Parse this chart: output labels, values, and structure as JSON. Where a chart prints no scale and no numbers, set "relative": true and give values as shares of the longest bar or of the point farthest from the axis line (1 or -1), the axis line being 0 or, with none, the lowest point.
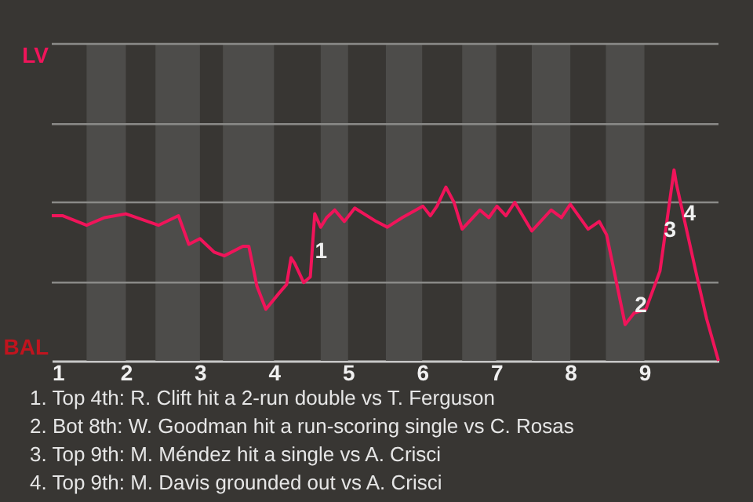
{
  "chart_data": {
    "type": "line",
    "relative": true,
    "x": [
      1,
      1.15,
      1.47,
      1.71,
      2,
      2.44,
      2.71,
      2.85,
      3,
      3.19,
      3.33,
      3.58,
      3.66,
      3.77,
      3.89,
      4.08,
      4.17,
      4.23,
      4.28,
      4.4,
      4.49,
      4.55,
      4.63,
      4.71,
      4.82,
      4.95,
      5.09,
      5.38,
      5.53,
      5.73,
      6.01,
      6.11,
      6.2,
      6.32,
      6.43,
      6.54,
      6.78,
      6.9,
      7.01,
      7.13,
      7.25,
      7.48,
      7.74,
      7.88,
      8,
      8.24,
      8.39,
      8.49,
      8.74,
      8.86,
      9.02,
      9.21,
      9.4,
      9.43,
      9.71,
      9.84,
      10
    ],
    "series": [
      {
        "color": "#f0145a",
        "values": [
          0.76,
          0.76,
          0.71,
          0.75,
          0.77,
          0.71,
          0.76,
          0.61,
          0.64,
          0.57,
          0.55,
          0.6,
          0.6,
          0.39,
          0.27,
          0.36,
          0.4,
          0.54,
          0.51,
          0.41,
          0.44,
          0.77,
          0.7,
          0.75,
          0.79,
          0.73,
          0.8,
          0.73,
          0.7,
          0.75,
          0.81,
          0.76,
          0.81,
          0.91,
          0.83,
          0.69,
          0.79,
          0.75,
          0.81,
          0.76,
          0.83,
          0.68,
          0.79,
          0.75,
          0.82,
          0.69,
          0.73,
          0.66,
          0.19,
          0.25,
          0.27,
          0.47,
          1,
          0.93,
          0.44,
          0.22,
          0
        ]
      }
    ],
    "xlim": [
      1,
      10
    ],
    "xticks": [
      1,
      2,
      3,
      4,
      5,
      6,
      7,
      8,
      9
    ],
    "marker": "none",
    "line_style": "solid",
    "ref_lines": [
      {
        "axis": "y",
        "value": 0.41,
        "color": "#8a8a88"
      },
      {
        "axis": "y",
        "value": 0.83,
        "color": "#8a8a88"
      },
      {
        "axis": "y",
        "value": 1.24,
        "color": "#8a8a88"
      },
      {
        "axis": "y",
        "value": 1.66,
        "color": "#8a8a88"
      }
    ],
    "bands": [
      {
        "axis": "x",
        "from": 1.47,
        "to": 2,
        "color": "#4d4c4a"
      },
      {
        "axis": "x",
        "from": 2.4,
        "to": 3,
        "color": "#4d4c4a"
      },
      {
        "axis": "x",
        "from": 3.31,
        "to": 4,
        "color": "#4d4c4a"
      },
      {
        "axis": "x",
        "from": 4.63,
        "to": 5,
        "color": "#4d4c4a"
      },
      {
        "axis": "x",
        "from": 5.51,
        "to": 6,
        "color": "#4d4c4a"
      },
      {
        "axis": "x",
        "from": 6.54,
        "to": 7,
        "color": "#4d4c4a"
      },
      {
        "axis": "x",
        "from": 7.48,
        "to": 8,
        "color": "#4d4c4a"
      },
      {
        "axis": "x",
        "from": 8.48,
        "to": 9,
        "color": "#4d4c4a"
      }
    ],
    "annotations": [
      {
        "text": "1",
        "x": 4.55,
        "y": 0.77
      },
      {
        "text": "2",
        "x": 8.74,
        "y": 0.19
      },
      {
        "text": "3",
        "x": 9.43,
        "y": 0.93
      },
      {
        "text": "4",
        "x": 9.4,
        "y": 1
      },
      "LV",
      "BAL",
      "1. Top 4th: R. Clift hit a 2-run double vs T. Ferguson",
      "2. Bot 8th: W. Goodman hit a run-scoring single vs C. Rosas",
      "3. Top 9th: M. Méndez hit a single vs A. Crisci",
      "4. Top 9th: M. Davis grounded out vs A. Crisci"
    ]
  }
}
